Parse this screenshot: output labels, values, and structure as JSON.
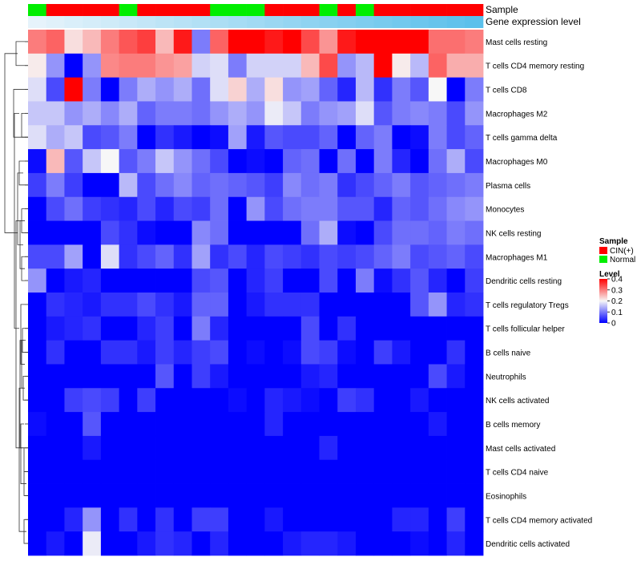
{
  "chart_data": {
    "type": "heatmap",
    "title": "",
    "annotation_tracks": [
      {
        "name": "Sample",
        "values": [
          "Normal",
          "CIN(+)",
          "CIN(+)",
          "CIN(+)",
          "CIN(+)",
          "Normal",
          "CIN(+)",
          "CIN(+)",
          "CIN(+)",
          "CIN(+)",
          "Normal",
          "Normal",
          "Normal",
          "CIN(+)",
          "CIN(+)",
          "CIN(+)",
          "Normal",
          "CIN(+)",
          "Normal",
          "CIN(+)",
          "CIN(+)",
          "CIN(+)",
          "CIN(+)",
          "CIN(+)",
          "CIN(+)"
        ]
      },
      {
        "name": "Gene expression level",
        "values": [
          0.5,
          1.0,
          1.5,
          2.0,
          2.5,
          3.0,
          3.5,
          4.0,
          4.5,
          5.0,
          5.5,
          6.0,
          6.5,
          7.0,
          7.5,
          8.0,
          8.5,
          9.0,
          9.5,
          10.0,
          10.5,
          11.0,
          11.5,
          12.0,
          12.5
        ]
      }
    ],
    "rows": [
      "Mast cells resting",
      "T cells CD4 memory resting",
      "T cells CD8",
      "Macrophages M2",
      "T cells gamma delta",
      "Macrophages M0",
      "Plasma cells",
      "Monocytes",
      "NK cells resting",
      "Macrophages M1",
      "Dendritic cells resting",
      "T cells regulatory  Tregs",
      "T cells follicular helper",
      "B cells naive",
      "Neutrophils",
      "NK cells activated",
      "B cells memory",
      "Mast cells activated",
      "T cells CD4 naive",
      "Eosinophils",
      "T cells CD4 memory activated",
      "Dendritic cells activated"
    ],
    "n_columns": 25,
    "matrix": [
      [
        0.3,
        0.32,
        0.22,
        0.25,
        0.3,
        0.33,
        0.35,
        0.25,
        0.38,
        0.1,
        0.32,
        0.4,
        0.4,
        0.38,
        0.4,
        0.34,
        0.28,
        0.38,
        0.4,
        0.4,
        0.4,
        0.4,
        0.31,
        0.31,
        0.3
      ],
      [
        0.21,
        0.12,
        0.0,
        0.12,
        0.29,
        0.3,
        0.3,
        0.28,
        0.27,
        0.17,
        0.18,
        0.1,
        0.17,
        0.17,
        0.17,
        0.25,
        0.34,
        0.12,
        0.15,
        0.4,
        0.21,
        0.15,
        0.32,
        0.26,
        0.26
      ],
      [
        0.18,
        0.06,
        0.4,
        0.1,
        0.0,
        0.1,
        0.14,
        0.12,
        0.14,
        0.09,
        0.18,
        0.23,
        0.14,
        0.22,
        0.12,
        0.13,
        0.08,
        0.03,
        0.15,
        0.04,
        0.1,
        0.07,
        0.2,
        0.0,
        0.1
      ],
      [
        0.16,
        0.16,
        0.12,
        0.14,
        0.11,
        0.14,
        0.08,
        0.1,
        0.1,
        0.09,
        0.12,
        0.14,
        0.12,
        0.19,
        0.16,
        0.1,
        0.12,
        0.13,
        0.18,
        0.07,
        0.1,
        0.11,
        0.1,
        0.06,
        0.12
      ],
      [
        0.18,
        0.14,
        0.16,
        0.06,
        0.07,
        0.1,
        0.0,
        0.04,
        0.02,
        0.0,
        0.01,
        0.13,
        0.02,
        0.07,
        0.06,
        0.06,
        0.08,
        0.0,
        0.08,
        0.1,
        0.0,
        0.01,
        0.1,
        0.06,
        0.08
      ],
      [
        0.01,
        0.25,
        0.07,
        0.16,
        0.2,
        0.07,
        0.1,
        0.16,
        0.12,
        0.09,
        0.06,
        0.0,
        0.01,
        0.0,
        0.08,
        0.09,
        0.0,
        0.09,
        0.0,
        0.1,
        0.03,
        0.0,
        0.09,
        0.14,
        0.06
      ],
      [
        0.05,
        0.1,
        0.05,
        0.0,
        0.0,
        0.15,
        0.06,
        0.09,
        0.11,
        0.08,
        0.09,
        0.08,
        0.07,
        0.05,
        0.11,
        0.09,
        0.1,
        0.04,
        0.06,
        0.08,
        0.1,
        0.07,
        0.08,
        0.09,
        0.1
      ],
      [
        0.0,
        0.06,
        0.09,
        0.05,
        0.04,
        0.03,
        0.06,
        0.03,
        0.06,
        0.05,
        0.09,
        0.0,
        0.12,
        0.06,
        0.09,
        0.1,
        0.1,
        0.07,
        0.07,
        0.03,
        0.08,
        0.07,
        0.09,
        0.11,
        0.12
      ],
      [
        0.0,
        0.0,
        0.0,
        0.0,
        0.06,
        0.04,
        0.01,
        0.0,
        0.0,
        0.11,
        0.09,
        0.0,
        0.0,
        0.0,
        0.0,
        0.09,
        0.14,
        0.01,
        0.0,
        0.06,
        0.09,
        0.09,
        0.08,
        0.1,
        0.09
      ],
      [
        0.06,
        0.06,
        0.13,
        0.0,
        0.18,
        0.04,
        0.06,
        0.08,
        0.04,
        0.13,
        0.04,
        0.06,
        0.03,
        0.06,
        0.05,
        0.04,
        0.06,
        0.05,
        0.06,
        0.08,
        0.1,
        0.06,
        0.07,
        0.08,
        0.06
      ],
      [
        0.12,
        0.0,
        0.02,
        0.03,
        0.0,
        0.0,
        0.0,
        0.0,
        0.0,
        0.06,
        0.07,
        0.0,
        0.03,
        0.05,
        0.0,
        0.0,
        0.06,
        0.0,
        0.1,
        0.01,
        0.04,
        0.07,
        0.03,
        0.0,
        0.05
      ],
      [
        0.0,
        0.04,
        0.03,
        0.02,
        0.04,
        0.04,
        0.06,
        0.04,
        0.02,
        0.08,
        0.08,
        0.0,
        0.02,
        0.04,
        0.04,
        0.04,
        0.0,
        0.0,
        0.0,
        0.0,
        0.0,
        0.07,
        0.12,
        0.03,
        0.04
      ],
      [
        0.0,
        0.02,
        0.03,
        0.04,
        0.0,
        0.0,
        0.03,
        0.05,
        0.0,
        0.1,
        0.03,
        0.0,
        0.0,
        0.0,
        0.0,
        0.06,
        0.0,
        0.04,
        0.0,
        0.0,
        0.0,
        0.0,
        0.0,
        0.0,
        0.0
      ],
      [
        0.0,
        0.04,
        0.0,
        0.0,
        0.04,
        0.04,
        0.02,
        0.05,
        0.03,
        0.05,
        0.06,
        0.0,
        0.01,
        0.0,
        0.01,
        0.06,
        0.05,
        0.01,
        0.0,
        0.05,
        0.02,
        0.0,
        0.0,
        0.04,
        0.0
      ],
      [
        0.0,
        0.0,
        0.0,
        0.0,
        0.0,
        0.0,
        0.0,
        0.07,
        0.0,
        0.05,
        0.02,
        0.0,
        0.0,
        0.0,
        0.0,
        0.02,
        0.03,
        0.0,
        0.0,
        0.0,
        0.0,
        0.0,
        0.06,
        0.02,
        0.0
      ],
      [
        0.0,
        0.0,
        0.05,
        0.06,
        0.05,
        0.0,
        0.05,
        0.0,
        0.0,
        0.0,
        0.0,
        0.01,
        0.0,
        0.03,
        0.02,
        0.01,
        0.0,
        0.05,
        0.04,
        0.0,
        0.0,
        0.02,
        0.0,
        0.0,
        0.0
      ],
      [
        0.01,
        0.0,
        0.0,
        0.07,
        0.0,
        0.0,
        0.0,
        0.0,
        0.0,
        0.0,
        0.0,
        0.0,
        0.0,
        0.03,
        0.0,
        0.0,
        0.0,
        0.0,
        0.0,
        0.0,
        0.0,
        0.0,
        0.02,
        0.0,
        0.0
      ],
      [
        0.0,
        0.0,
        0.0,
        0.02,
        0.0,
        0.0,
        0.0,
        0.0,
        0.0,
        0.0,
        0.0,
        0.0,
        0.0,
        0.0,
        0.0,
        0.0,
        0.03,
        0.0,
        0.0,
        0.0,
        0.0,
        0.0,
        0.0,
        0.0,
        0.0
      ],
      [
        0.0,
        0.0,
        0.0,
        0.0,
        0.0,
        0.0,
        0.0,
        0.0,
        0.0,
        0.0,
        0.0,
        0.0,
        0.0,
        0.0,
        0.0,
        0.0,
        0.0,
        0.0,
        0.0,
        0.0,
        0.0,
        0.0,
        0.0,
        0.0,
        0.0
      ],
      [
        0.0,
        0.0,
        0.0,
        0.0,
        0.0,
        0.0,
        0.0,
        0.0,
        0.0,
        0.0,
        0.0,
        0.0,
        0.0,
        0.0,
        0.0,
        0.0,
        0.0,
        0.0,
        0.0,
        0.0,
        0.0,
        0.0,
        0.0,
        0.0,
        0.0
      ],
      [
        0.0,
        0.0,
        0.03,
        0.12,
        0.0,
        0.04,
        0.0,
        0.04,
        0.0,
        0.05,
        0.05,
        0.0,
        0.0,
        0.02,
        0.0,
        0.0,
        0.0,
        0.0,
        0.0,
        0.0,
        0.03,
        0.03,
        0.0,
        0.05,
        0.0
      ],
      [
        0.0,
        0.02,
        0.0,
        0.19,
        0.0,
        0.0,
        0.02,
        0.04,
        0.03,
        0.0,
        0.03,
        0.0,
        0.0,
        0.0,
        0.02,
        0.03,
        0.03,
        0.02,
        0.0,
        0.0,
        0.0,
        0.01,
        0.0,
        0.03,
        0.0
      ]
    ],
    "legend": {
      "sample": {
        "title": "Sample",
        "entries": [
          {
            "label": "CIN(+)",
            "color": "#ff0000"
          },
          {
            "label": "Normal",
            "color": "#00ee00"
          }
        ]
      },
      "level": {
        "title": "Level",
        "ticks": [
          0.4,
          0.3,
          0.2,
          0.1,
          0
        ],
        "tick_labels": [
          "0.4",
          "0.3",
          "0.2",
          "0.1",
          "0"
        ],
        "range": [
          0,
          0.4
        ],
        "placement": "right"
      }
    },
    "colors": {
      "low": "#0000ff",
      "mid": "#f7f7f7",
      "high": "#ff0000",
      "gene_low": "#e6f3fb",
      "gene_high": "#5bc0eb"
    },
    "dendrogram": "row (left)"
  }
}
